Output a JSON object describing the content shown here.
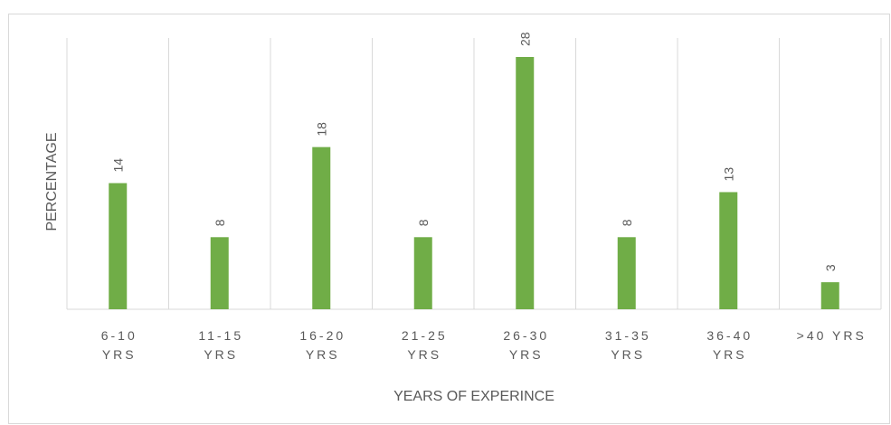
{
  "chart_data": {
    "type": "bar",
    "title": "",
    "xlabel": "YEARS OF EXPERINCE",
    "ylabel": "PERCENTAGE",
    "categories": [
      [
        "6-10",
        "YRS"
      ],
      [
        "11-15",
        "YRS"
      ],
      [
        "16-20",
        "YRS"
      ],
      [
        "21-25",
        "YRS"
      ],
      [
        "26-30",
        "YRS"
      ],
      [
        "31-35",
        "YRS"
      ],
      [
        "36-40",
        "YRS"
      ],
      [
        ">40 YRS"
      ]
    ],
    "values": [
      14,
      8,
      18,
      8,
      28,
      8,
      13,
      3
    ],
    "ylim": [
      0,
      28
    ],
    "bar_color": "#70ad47",
    "grid_color": "#d9d9d9",
    "text_color": "#595959",
    "gridlines": "vertical category separators",
    "legend": "none",
    "data_labels": "rotated, above bars"
  }
}
